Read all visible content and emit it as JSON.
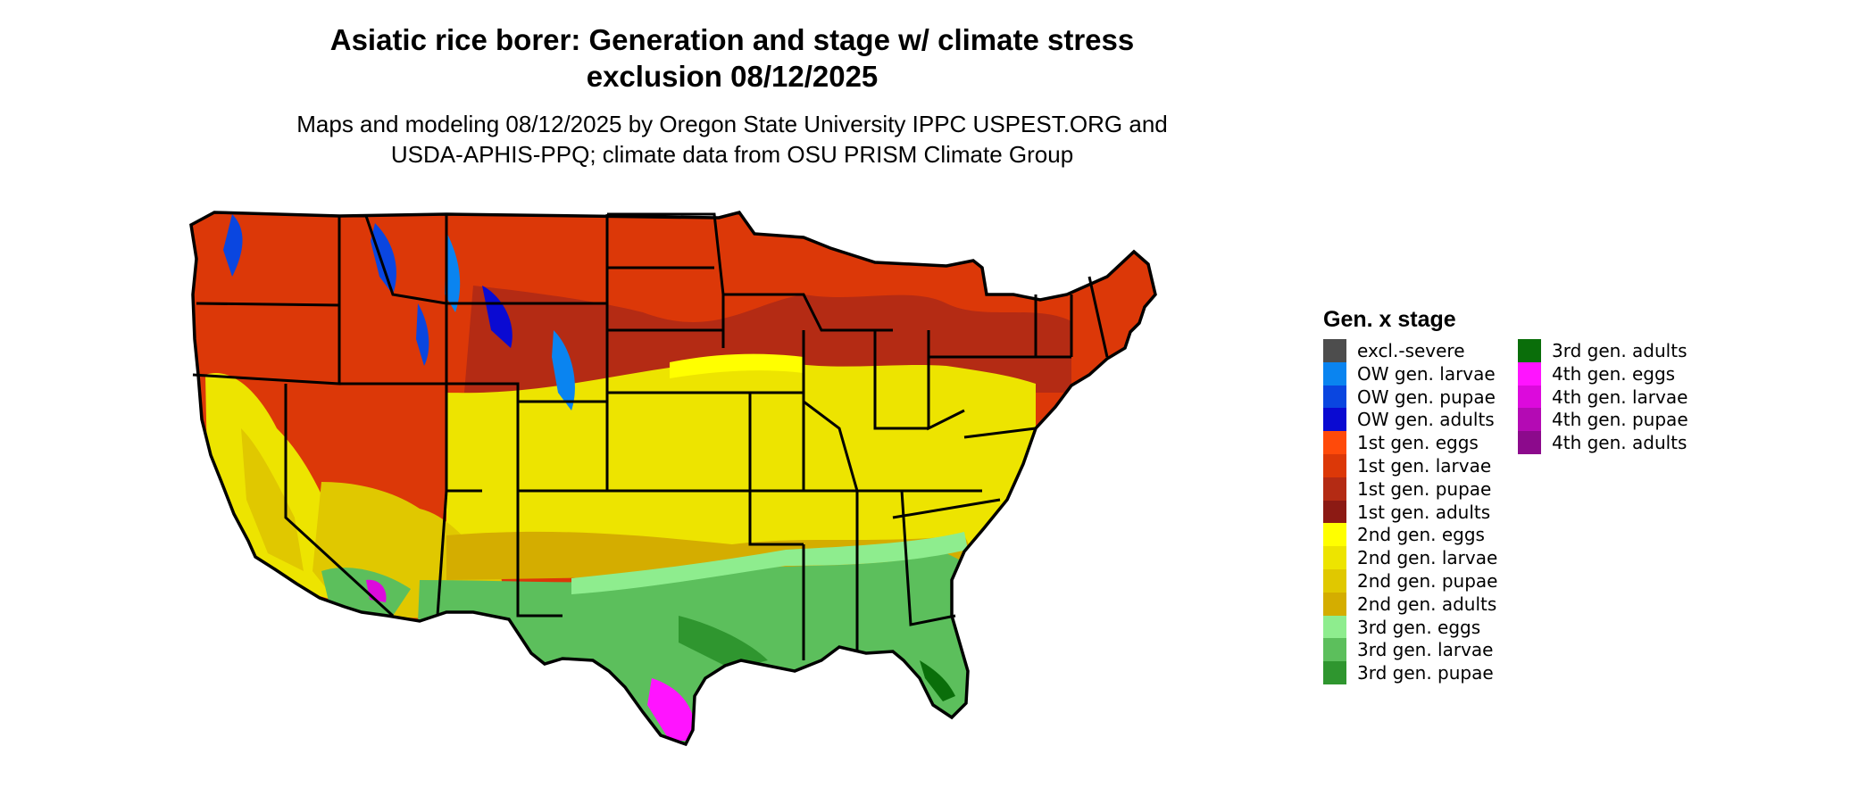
{
  "title_line1": "Asiatic rice borer: Generation and stage w/ climate stress",
  "title_line2": "exclusion 08/12/2025",
  "subtitle_line1": "Maps and modeling 08/12/2025 by Oregon State University IPPC USPEST.ORG and",
  "subtitle_line2": "USDA-APHIS-PPQ; climate data from OSU PRISM Climate Group",
  "legend": {
    "title": "Gen. x stage",
    "items": [
      {
        "label": "excl.-severe",
        "color": "#4d4d4d"
      },
      {
        "label": "OW gen. larvae",
        "color": "#0a84f0"
      },
      {
        "label": "OW gen. pupae",
        "color": "#0a46e0"
      },
      {
        "label": "OW gen. adults",
        "color": "#0a0ad2"
      },
      {
        "label": "1st gen. eggs",
        "color": "#ff4a0a"
      },
      {
        "label": "1st gen. larvae",
        "color": "#dc3808"
      },
      {
        "label": "1st gen. pupae",
        "color": "#b42b14"
      },
      {
        "label": "1st gen. adults",
        "color": "#8c1a14"
      },
      {
        "label": "2nd gen. eggs",
        "color": "#ffff00"
      },
      {
        "label": "2nd gen. larvae",
        "color": "#ede400"
      },
      {
        "label": "2nd gen. pupae",
        "color": "#e0c800"
      },
      {
        "label": "2nd gen. adults",
        "color": "#d4ad00"
      },
      {
        "label": "3rd gen. eggs",
        "color": "#8eed8e"
      },
      {
        "label": "3rd gen. larvae",
        "color": "#5cbf5c"
      },
      {
        "label": "3rd gen. pupae",
        "color": "#2f962f"
      },
      {
        "label": "3rd gen. adults",
        "color": "#0a6e0a"
      },
      {
        "label": "4th gen. eggs",
        "color": "#ff14ff"
      },
      {
        "label": "4th gen. larvae",
        "color": "#dc0adc"
      },
      {
        "label": "4th gen. pupae",
        "color": "#b40ab4"
      },
      {
        "label": "4th gen. adults",
        "color": "#8c0a8c"
      }
    ]
  }
}
